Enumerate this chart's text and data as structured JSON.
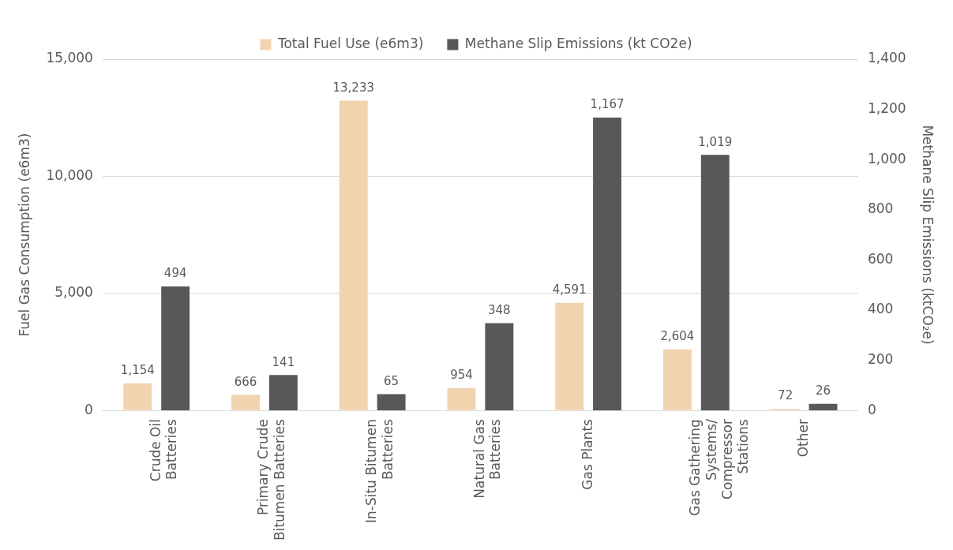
{
  "chart_data": {
    "type": "bar",
    "categories": [
      "Crude Oil Batteries",
      "Primary Crude Bitumen Batteries",
      "In-Situ Bitumen Batteries",
      "Natural Gas Batteries",
      "Gas Plants",
      "Gas Gathering Systems/ Compressor Stations",
      "Other"
    ],
    "series": [
      {
        "name": "Total Fuel Use (e6m3)",
        "color": "#f2d3b0",
        "values": [
          1154,
          666,
          13233,
          954,
          4591,
          2604,
          72
        ],
        "value_labels": [
          "1,154",
          "666",
          "13,233",
          "954",
          "4,591",
          "2,604",
          "72"
        ]
      },
      {
        "name": "Methane Slip Emissions (kt CO2e)",
        "color": "#58585a",
        "axis": "y2",
        "values": [
          494,
          141,
          65,
          348,
          1167,
          1019,
          26
        ],
        "value_labels": [
          "494",
          "141",
          "65",
          "348",
          "1,167",
          "1,019",
          "26"
        ]
      }
    ],
    "ylabel": "Fuel Gas Consumption (e6m3)",
    "y2label": "Methane Slip Emissions (ktCO₂e)",
    "ylim": [
      0,
      15000
    ],
    "yticks": [
      0,
      {
        "value": 5000,
        "label": "5,000"
      },
      {
        "value": 10000,
        "label": "10,000"
      },
      {
        "value": 15000,
        "label": "15,000"
      }
    ],
    "y2lim": [
      0,
      1400
    ],
    "y2ticks": [
      0,
      200,
      400,
      600,
      800,
      {
        "value": 1000,
        "label": "1,000"
      },
      {
        "value": 1200,
        "label": "1,200"
      },
      {
        "value": 1400,
        "label": "1,400"
      }
    ],
    "grid": "y",
    "legend": "top"
  }
}
